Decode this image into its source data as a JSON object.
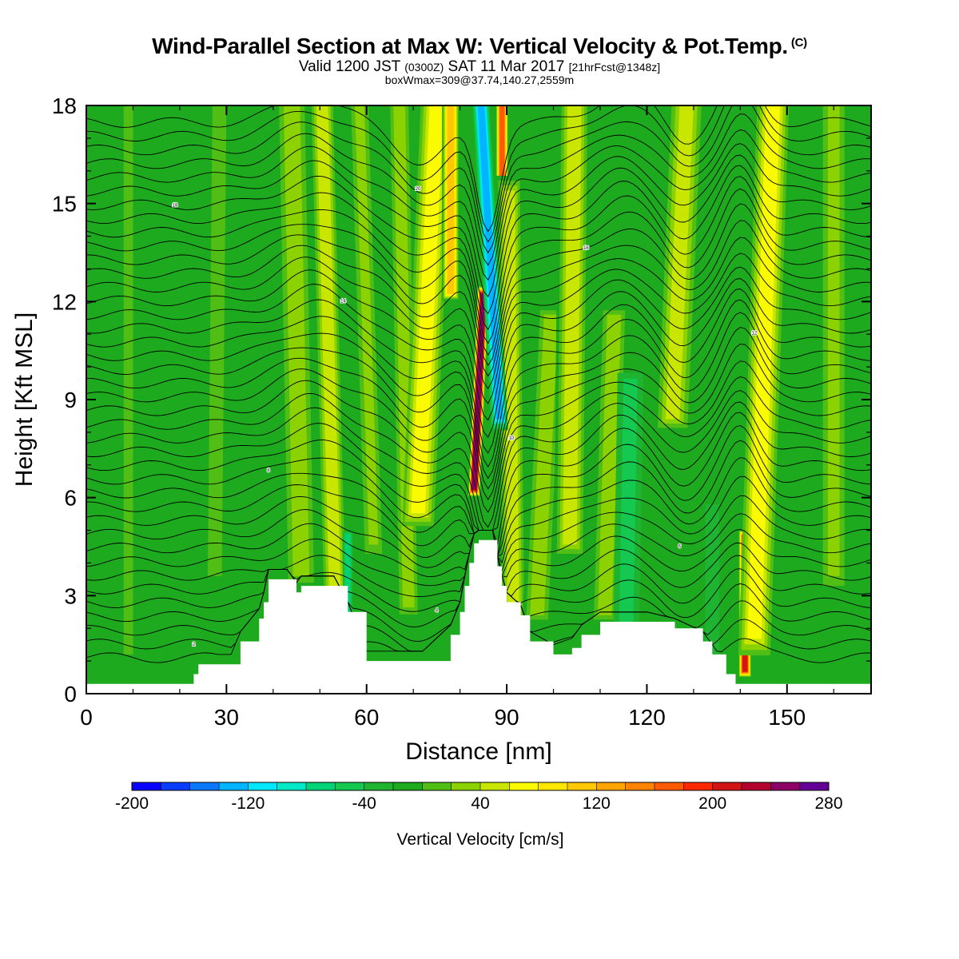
{
  "header": {
    "title": "Wind-Parallel Section at Max W: Vertical Velocity & Pot.Temp.",
    "title_mark": "(C)",
    "valid_prefix": "Valid 1200 JST",
    "valid_utc": "(0300Z)",
    "valid_date": "SAT 11 Mar 2017",
    "forecast_info": "[21hrFcst@1348z]",
    "box_info": "boxWmax=309@37.74,140.27,2559m"
  },
  "chart_data": {
    "type": "heatmap",
    "xlabel": "Distance [nm]",
    "ylabel": "Height [Kft MSL]",
    "xlim": [
      0,
      168
    ],
    "ylim": [
      0,
      18
    ],
    "x_ticks": [
      0,
      30,
      60,
      90,
      120,
      150
    ],
    "y_ticks": [
      0,
      3,
      6,
      9,
      12,
      15,
      18
    ],
    "colorbar": {
      "label": "Vertical Velocity [cm/s]",
      "min": -200,
      "max": 280,
      "step": 20,
      "tick_labels": [
        -200,
        -120,
        -40,
        40,
        120,
        200,
        280
      ],
      "colors": [
        "#0a00ff",
        "#0a3cff",
        "#0a78ff",
        "#00b4ff",
        "#00e8ff",
        "#00e8c8",
        "#00d278",
        "#14c850",
        "#1eb432",
        "#1eaa1e",
        "#50be14",
        "#8cd200",
        "#c8e600",
        "#fafa00",
        "#ffe600",
        "#ffc800",
        "#ffa500",
        "#ff8200",
        "#ff5a00",
        "#ff2800",
        "#d21414",
        "#b4002d",
        "#8c0064",
        "#640096"
      ]
    },
    "background_velocity": -20,
    "updrafts": [
      {
        "x": 9,
        "w": 4,
        "y0": 0.5,
        "y1": 18,
        "value": 10,
        "tilt": 0
      },
      {
        "x": 28,
        "w": 6,
        "y0": 3,
        "y1": 18,
        "value": 10,
        "tilt": 1
      },
      {
        "x": 45,
        "w": 7,
        "y0": 3,
        "y1": 18,
        "value": 35,
        "tilt": -2
      },
      {
        "x": 52,
        "w": 5,
        "y0": 1,
        "y1": 18,
        "value": 45,
        "tilt": -3
      },
      {
        "x": 60,
        "w": 4,
        "y0": 4,
        "y1": 18,
        "value": 20,
        "tilt": -3
      },
      {
        "x": 68,
        "w": 5,
        "y0": 2,
        "y1": 18,
        "value": 30,
        "tilt": -2
      },
      {
        "x": 73,
        "w": 6,
        "y0": 5,
        "y1": 18,
        "value": 60,
        "tilt": 4
      },
      {
        "x": 78,
        "w": 3,
        "y0": 12,
        "y1": 18,
        "value": 110,
        "tilt": 0
      },
      {
        "x": 84,
        "w": 2,
        "y0": 6,
        "y1": 12.5,
        "value": 250,
        "tilt": 2
      },
      {
        "x": 89,
        "w": 2,
        "y0": 13,
        "y1": 18,
        "value": 160,
        "tilt": 0
      },
      {
        "x": 91,
        "w": 5,
        "y0": 1,
        "y1": 16,
        "value": 55,
        "tilt": -1
      },
      {
        "x": 98,
        "w": 6,
        "y0": 2,
        "y1": 12,
        "value": 35,
        "tilt": 3
      },
      {
        "x": 104,
        "w": 6,
        "y0": 4,
        "y1": 18,
        "value": 45,
        "tilt": 1
      },
      {
        "x": 112,
        "w": 6,
        "y0": 2,
        "y1": 12,
        "value": 35,
        "tilt": 2
      },
      {
        "x": 127,
        "w": 6,
        "y0": 8,
        "y1": 18,
        "value": 40,
        "tilt": 3
      },
      {
        "x": 141,
        "w": 2,
        "y0": 0.5,
        "y1": 5,
        "value": 200,
        "tilt": 0
      },
      {
        "x": 145,
        "w": 6,
        "y0": 1,
        "y1": 18,
        "value": 60,
        "tilt": 4
      },
      {
        "x": 160,
        "w": 5,
        "y0": 3,
        "y1": 18,
        "value": 20,
        "tilt": 0
      }
    ],
    "downdrafts": [
      {
        "x": 86.5,
        "w": 3,
        "y0": 8,
        "y1": 18,
        "value": -130,
        "tilt": -4
      },
      {
        "x": 56,
        "w": 2,
        "y0": 2,
        "y1": 5,
        "value": -80,
        "tilt": 0
      },
      {
        "x": 116,
        "w": 6,
        "y0": 1,
        "y1": 10,
        "value": -50,
        "tilt": 1
      },
      {
        "x": 134,
        "w": 6,
        "y0": 1,
        "y1": 6,
        "value": -40,
        "tilt": 0
      }
    ],
    "terrain": {
      "x": [
        0,
        22,
        23,
        24,
        31,
        33,
        37,
        38,
        39,
        43,
        45,
        46,
        53,
        56,
        60,
        66,
        72,
        78,
        80,
        81,
        82,
        83,
        84,
        87,
        88,
        89,
        90,
        93,
        95,
        100,
        104,
        106,
        110,
        113,
        120,
        126,
        132,
        134,
        137,
        139,
        168
      ],
      "y": [
        0.3,
        0.3,
        0.6,
        0.9,
        0.9,
        1.6,
        2.3,
        2.8,
        3.5,
        3.5,
        3.1,
        3.3,
        3.3,
        2.5,
        1.0,
        1.0,
        1.0,
        1.8,
        2.5,
        3.3,
        4.0,
        4.6,
        4.7,
        4.7,
        3.9,
        3.3,
        2.8,
        2.4,
        1.6,
        1.2,
        1.4,
        1.8,
        2.2,
        2.2,
        2.2,
        2.0,
        1.6,
        1.2,
        0.6,
        0.3,
        0.3
      ]
    },
    "isentropes": {
      "count": 40,
      "base_km": 1.1,
      "spacing_kft": 0.42,
      "annotation_labels": [
        "2",
        "4",
        "6",
        "8",
        "10",
        "12",
        "14",
        "16",
        "18",
        "20"
      ]
    }
  }
}
